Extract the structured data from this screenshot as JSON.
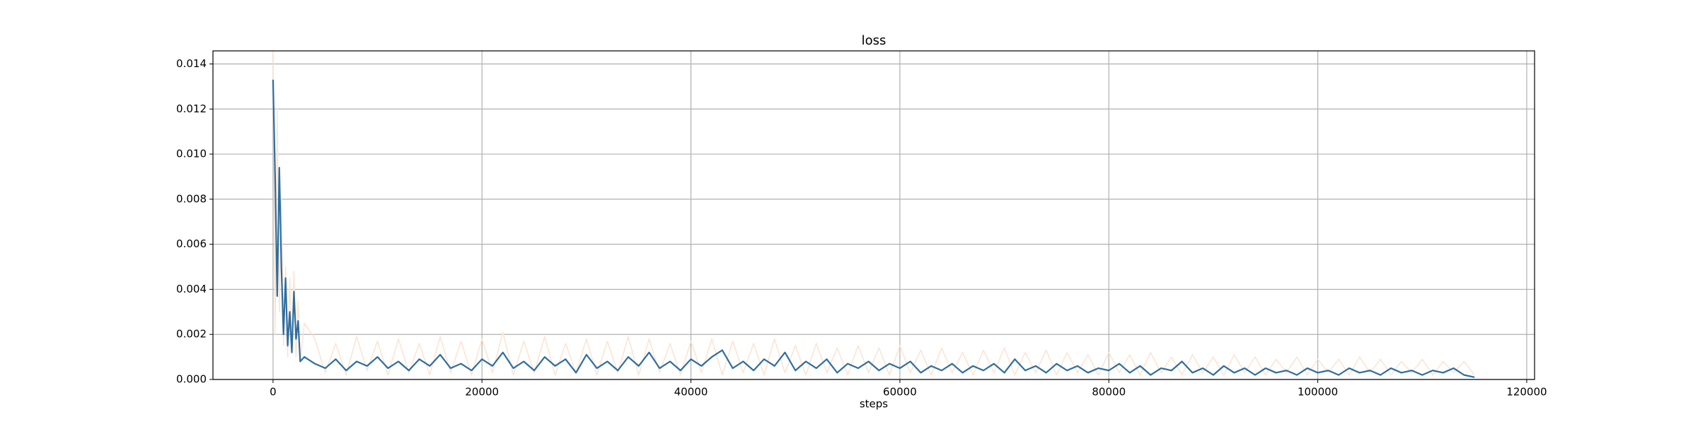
{
  "chart_data": {
    "type": "line",
    "title": "loss",
    "xlabel": "steps",
    "x": [
      0,
      200,
      400,
      600,
      800,
      1000,
      1200,
      1400,
      1600,
      1800,
      2000,
      2200,
      2400,
      2600,
      3000,
      4000,
      5000,
      6000,
      7000,
      8000,
      9000,
      10000,
      11000,
      12000,
      13000,
      14000,
      15000,
      16000,
      17000,
      18000,
      19000,
      20000,
      21000,
      22000,
      23000,
      24000,
      25000,
      26000,
      27000,
      28000,
      29000,
      30000,
      31000,
      32000,
      33000,
      34000,
      35000,
      36000,
      37000,
      38000,
      39000,
      40000,
      41000,
      42000,
      43000,
      44000,
      45000,
      46000,
      47000,
      48000,
      49000,
      50000,
      51000,
      52000,
      53000,
      54000,
      55000,
      56000,
      57000,
      58000,
      59000,
      60000,
      61000,
      62000,
      63000,
      64000,
      65000,
      66000,
      67000,
      68000,
      69000,
      70000,
      71000,
      72000,
      73000,
      74000,
      75000,
      76000,
      77000,
      78000,
      79000,
      80000,
      81000,
      82000,
      83000,
      84000,
      85000,
      86000,
      87000,
      88000,
      89000,
      90000,
      91000,
      92000,
      93000,
      94000,
      95000,
      96000,
      97000,
      98000,
      99000,
      100000,
      101000,
      102000,
      103000,
      104000,
      105000,
      106000,
      107000,
      108000,
      109000,
      110000,
      111000,
      112000,
      113000,
      114000,
      115000
    ],
    "series": [
      {
        "color": "#fde3d0",
        "values": [
          0.015,
          0.002,
          0.012,
          0.003,
          0.008,
          0.0015,
          0.005,
          0.001,
          0.0045,
          0.0012,
          0.0048,
          0.001,
          0.0035,
          0.0008,
          0.0025,
          0.0018,
          0.0003,
          0.0016,
          0.0002,
          0.0019,
          0.0004,
          0.0017,
          0.0002,
          0.0018,
          0.0003,
          0.0016,
          0.0002,
          0.0019,
          0.0003,
          0.0017,
          0.0002,
          0.0018,
          0.0003,
          0.0021,
          0.0002,
          0.0017,
          0.0003,
          0.0019,
          0.0002,
          0.0016,
          0.0003,
          0.0018,
          0.0002,
          0.0017,
          0.0003,
          0.0019,
          0.0002,
          0.0018,
          0.0003,
          0.0016,
          0.0002,
          0.0017,
          0.0003,
          0.0018,
          0.0002,
          0.0017,
          0.0003,
          0.0016,
          0.0002,
          0.0018,
          0.0003,
          0.0015,
          0.0002,
          0.0016,
          0.0003,
          0.0014,
          0.0002,
          0.0015,
          0.0003,
          0.0014,
          0.0002,
          0.0015,
          0.0003,
          0.0013,
          0.0002,
          0.0014,
          0.0003,
          0.0012,
          0.0002,
          0.0013,
          0.0003,
          0.0014,
          0.0002,
          0.0012,
          0.0003,
          0.0013,
          0.0002,
          0.0012,
          0.0003,
          0.0011,
          0.0002,
          0.0012,
          0.0003,
          0.0011,
          0.0002,
          0.0012,
          0.0003,
          0.001,
          0.0002,
          0.0011,
          0.0003,
          0.001,
          0.0002,
          0.0011,
          0.0003,
          0.001,
          0.0002,
          0.0009,
          0.0003,
          0.001,
          0.0002,
          0.0009,
          0.0003,
          0.0009,
          0.0002,
          0.001,
          0.0003,
          0.0009,
          0.0002,
          0.0008,
          0.0003,
          0.0009,
          0.0002,
          0.0008,
          0.0003,
          0.0008,
          0.0002
        ]
      },
      {
        "color": "#2f6e9e",
        "values": [
          0.0133,
          0.009,
          0.0037,
          0.0094,
          0.005,
          0.002,
          0.0045,
          0.0015,
          0.003,
          0.0012,
          0.0039,
          0.0018,
          0.0026,
          0.0008,
          0.001,
          0.0007,
          0.0005,
          0.0009,
          0.0004,
          0.0008,
          0.0006,
          0.001,
          0.0005,
          0.0008,
          0.0004,
          0.0009,
          0.0006,
          0.0011,
          0.0005,
          0.0007,
          0.0004,
          0.0009,
          0.0006,
          0.0012,
          0.0005,
          0.0008,
          0.0004,
          0.001,
          0.0006,
          0.0009,
          0.0003,
          0.0011,
          0.0005,
          0.0008,
          0.0004,
          0.001,
          0.0006,
          0.0012,
          0.0005,
          0.0008,
          0.0004,
          0.0009,
          0.0006,
          0.001,
          0.0013,
          0.0005,
          0.0008,
          0.0004,
          0.0009,
          0.0006,
          0.0012,
          0.0004,
          0.0008,
          0.0005,
          0.0009,
          0.0003,
          0.0007,
          0.0005,
          0.0008,
          0.0004,
          0.0007,
          0.0005,
          0.0008,
          0.0003,
          0.0006,
          0.0004,
          0.0007,
          0.0003,
          0.0006,
          0.0004,
          0.0007,
          0.0003,
          0.0009,
          0.0004,
          0.0006,
          0.0003,
          0.0007,
          0.0004,
          0.0006,
          0.0003,
          0.0005,
          0.0004,
          0.0007,
          0.0003,
          0.0006,
          0.0002,
          0.0005,
          0.0004,
          0.0008,
          0.0003,
          0.0005,
          0.0002,
          0.0006,
          0.0003,
          0.0005,
          0.0002,
          0.0005,
          0.0003,
          0.0004,
          0.0002,
          0.0005,
          0.0003,
          0.0004,
          0.0002,
          0.0005,
          0.0003,
          0.0004,
          0.0002,
          0.0005,
          0.0003,
          0.0004,
          0.0002,
          0.0004,
          0.0003,
          0.0005,
          0.0002,
          0.0001
        ]
      }
    ],
    "xlim": [
      -5750,
      120750
    ],
    "xticks": [
      0,
      20000,
      40000,
      60000,
      80000,
      100000,
      120000
    ],
    "ylim": [
      0,
      0.01458
    ],
    "yticks": [
      {
        "value": 0,
        "label": "0.000"
      },
      {
        "value": 0.002,
        "label": "0.002"
      },
      {
        "value": 0.004,
        "label": "0.004"
      },
      {
        "value": 0.006,
        "label": "0.006"
      },
      {
        "value": 0.008,
        "label": "0.008"
      },
      {
        "value": 0.01,
        "label": "0.010"
      },
      {
        "value": 0.012,
        "label": "0.012"
      },
      {
        "value": 0.014,
        "label": "0.014"
      }
    ],
    "grid": true
  }
}
